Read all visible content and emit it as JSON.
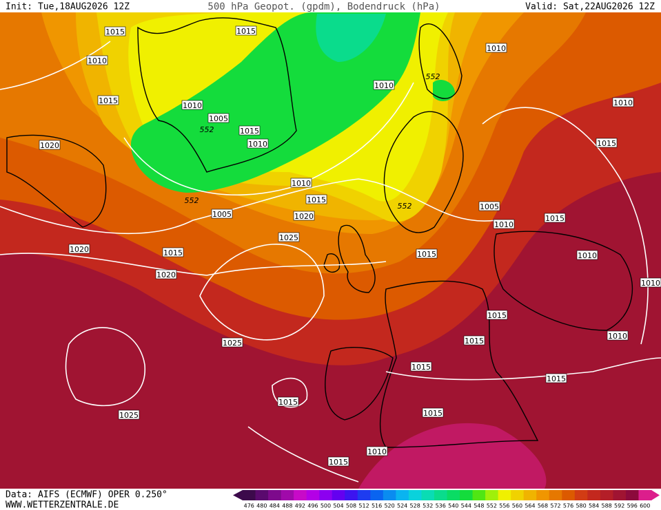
{
  "header": {
    "init": "Init: Tue,18AUG2026 12Z",
    "title": "500 hPa Geopot. (gpdm), Bodendruck (hPa)",
    "valid": "Valid: Sat,22AUG2026 12Z"
  },
  "map": {
    "isobar_labels": [
      1015,
      1015,
      1010,
      1015,
      1010,
      1005,
      552,
      1015,
      1010,
      1020,
      1010,
      552,
      1015,
      1005,
      1020,
      1025,
      1020,
      1015,
      1020,
      1025,
      1025,
      1015,
      1010,
      552,
      1010,
      1010,
      1015,
      552,
      1005,
      1010,
      1015,
      1010,
      1015,
      1015,
      1015,
      1010,
      1015,
      1015,
      1015,
      1010,
      1015,
      1010
    ]
  },
  "footer": {
    "source": "Data: AIFS (ECMWF) OPER 0.250°",
    "website": "WWW.WETTERZENTRALE.DE"
  },
  "colorbar": {
    "labels": [
      476,
      480,
      484,
      488,
      492,
      496,
      500,
      504,
      508,
      512,
      516,
      520,
      524,
      528,
      532,
      536,
      540,
      544,
      548,
      552,
      556,
      560,
      564,
      568,
      572,
      576,
      580,
      584,
      588,
      592,
      596,
      600
    ],
    "colors": [
      "#3c0a4b",
      "#5a0a6e",
      "#7d0a8c",
      "#a00aaa",
      "#c80ac8",
      "#b400e6",
      "#8c00f0",
      "#6400f0",
      "#3c14f0",
      "#1e3cf0",
      "#0a64f0",
      "#0a8cf0",
      "#0ab4f0",
      "#0ad2dc",
      "#0adcb4",
      "#0adc8c",
      "#0adc64",
      "#14dc3c",
      "#50e614",
      "#a0f00a",
      "#f0f000",
      "#f0d200",
      "#f0b400",
      "#f09600",
      "#e67800",
      "#dc5a00",
      "#d23c14",
      "#c3281e",
      "#b41e28",
      "#a01432",
      "#8c0a3c",
      "#dc1e8c"
    ]
  }
}
